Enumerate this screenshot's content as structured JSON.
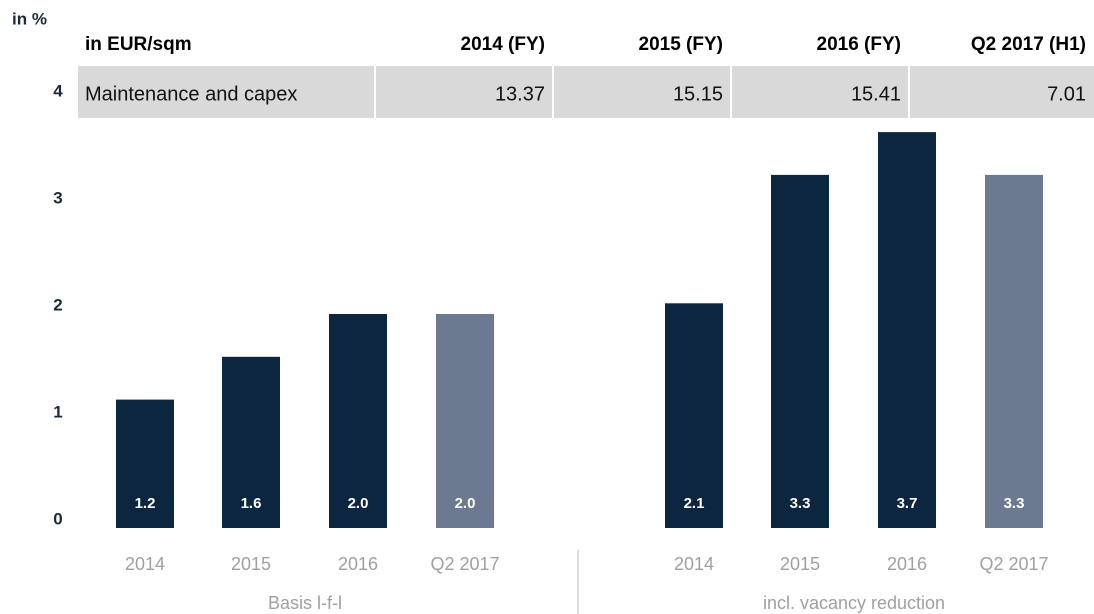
{
  "chart_data": {
    "type": "bar",
    "y_label": "in %",
    "ylim": [
      0,
      4
    ],
    "yticks": [
      0,
      1,
      2,
      3,
      4
    ],
    "groups": [
      {
        "name": "Basis l-f-l",
        "categories": [
          "2014",
          "2015",
          "2016",
          "Q2 2017"
        ],
        "values": [
          1.2,
          1.6,
          2,
          2
        ],
        "value_labels": [
          "1.2",
          "1.6",
          "2.0",
          "2.0"
        ],
        "colors": [
          "#0d2640",
          "#0d2640",
          "#0d2640",
          "#6b7a90"
        ]
      },
      {
        "name": "incl. vacancy reduction",
        "categories": [
          "2014",
          "2015",
          "2016",
          "Q2 2017"
        ],
        "values": [
          2.1,
          3.3,
          3.7,
          3.3
        ],
        "value_labels": [
          "2.1",
          "3.3",
          "3.7",
          "3.3"
        ],
        "colors": [
          "#0d2640",
          "#0d2640",
          "#0d2640",
          "#6b7a90"
        ]
      }
    ],
    "table": {
      "header": [
        "in EUR/sqm",
        "2014 (FY)",
        "2015 (FY)",
        "2016 (FY)",
        "Q2 2017 (H1)"
      ],
      "rows": [
        [
          "Maintenance and capex",
          "13.37",
          "15.15",
          "15.41",
          "7.01"
        ]
      ]
    }
  }
}
